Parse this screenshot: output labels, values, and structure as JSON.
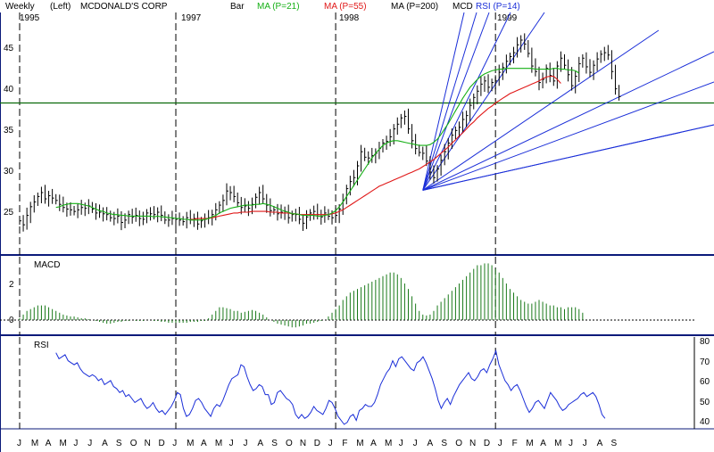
{
  "header": {
    "period": "Weekly",
    "scale_side": "(Left)",
    "company": "MCDONALD'S CORP",
    "bar_label": "Bar",
    "ma21_label": "MA (P=21)",
    "ma55_label": "MA (P=55)",
    "ma200_label": "MA (P=200)",
    "symbol": "MCD",
    "rsi_label": "RSI (P=14)"
  },
  "colors": {
    "ma21": "#16b016",
    "ma55": "#e01818",
    "ma200": "#000000",
    "macd_hist": "#1a7a1a",
    "fan": "#1a2ed8",
    "rsi": "#1a2ed8",
    "support": "#0a6a0a",
    "frame": "#0b1a7a"
  },
  "chart_data": [
    {
      "type": "bar",
      "name": "price",
      "ylim": [
        20.5,
        47.5
      ],
      "yticks": [
        25,
        30,
        35,
        40,
        45
      ],
      "year_labels": [
        {
          "label": "1995",
          "week": 0
        },
        {
          "label": "1997",
          "week": 43
        },
        {
          "label": "1998",
          "week": 87
        },
        {
          "label": "1999",
          "week": 131
        }
      ],
      "support_level": 37.8,
      "close": [
        22.8,
        22.3,
        23.5,
        24.6,
        25.2,
        25.9,
        26.4,
        25.6,
        26.0,
        25.7,
        25.4,
        24.9,
        24.5,
        24.3,
        24.2,
        24.0,
        24.2,
        24.5,
        24.4,
        24.7,
        24.3,
        23.8,
        23.9,
        23.7,
        23.6,
        23.2,
        23.1,
        23.4,
        22.6,
        22.9,
        23.6,
        23.3,
        23.5,
        23.1,
        23.0,
        23.8,
        23.7,
        23.6,
        23.9,
        23.5,
        22.9,
        22.9,
        23.1,
        23.0,
        22.9,
        22.7,
        23.2,
        23.0,
        23.1,
        22.4,
        22.8,
        23.0,
        23.2,
        23.6,
        24.2,
        24.8,
        25.4,
        26.6,
        26.4,
        25.9,
        25.1,
        24.5,
        24.7,
        24.4,
        24.9,
        25.8,
        26.4,
        25.6,
        24.8,
        24.1,
        24.2,
        23.7,
        23.9,
        24.0,
        23.2,
        23.6,
        23.6,
        23.0,
        22.5,
        23.3,
        23.8,
        24.0,
        23.6,
        23.3,
        23.8,
        23.4,
        23.2,
        23.5,
        24.3,
        25.4,
        26.9,
        27.8,
        28.3,
        29.8,
        31.6,
        30.9,
        30.8,
        31.1,
        31.4,
        32.0,
        32.7,
        32.9,
        33.5,
        34.5,
        35.1,
        35.9,
        36.1,
        34.5,
        33.0,
        32.0,
        31.5,
        31.4,
        30.4,
        29.0,
        28.3,
        29.4,
        30.5,
        31.6,
        32.7,
        33.7,
        34.3,
        34.7,
        35.7,
        36.2,
        37.5,
        38.5,
        39.3,
        40.2,
        40.6,
        39.8,
        40.4,
        40.6,
        41.7,
        42.3,
        43.1,
        43.7,
        44.2,
        45.2,
        45.8,
        45.3,
        44.1,
        42.5,
        41.8,
        40.4,
        40.8,
        42.2,
        41.3,
        40.6,
        42.5,
        43.5,
        42.6,
        41.4,
        40.0,
        41.2,
        42.8,
        43.5,
        42.4,
        41.7,
        42.6,
        43.4,
        44.0,
        44.2,
        43.9,
        41.8,
        39.6,
        38.6
      ],
      "ma21": [
        null,
        null,
        null,
        null,
        null,
        null,
        null,
        null,
        null,
        null,
        24.5,
        24.6,
        24.8,
        24.9,
        25.0,
        25.0,
        25.0,
        24.9,
        24.8,
        24.7,
        24.5,
        24.3,
        24.1,
        24.0,
        23.8,
        23.7,
        23.6,
        23.6,
        23.5,
        23.5,
        23.4,
        23.4,
        23.4,
        23.4,
        23.4,
        23.4,
        23.4,
        23.3,
        23.4,
        23.3,
        23.3,
        23.2,
        23.2,
        23.1,
        23.1,
        23.0,
        23.0,
        22.9,
        22.9,
        22.9,
        22.9,
        23.0,
        23.1,
        23.3,
        23.5,
        23.8,
        24.0,
        24.2,
        24.4,
        24.5,
        24.6,
        24.7,
        24.8,
        24.8,
        24.8,
        24.9,
        24.9,
        25.0,
        24.9,
        24.8,
        24.6,
        24.4,
        24.2,
        24.0,
        23.9,
        23.7,
        23.7,
        23.6,
        23.5,
        23.5,
        23.5,
        23.5,
        23.4,
        23.4,
        23.5,
        23.6,
        23.8,
        24.1,
        24.6,
        25.2,
        25.9,
        26.6,
        27.3,
        28.0,
        28.7,
        29.4,
        30.1,
        30.8,
        31.4,
        31.9,
        32.4,
        32.7,
        32.9,
        33.0,
        33.0,
        32.9,
        32.8,
        32.7,
        32.6,
        32.5,
        32.4,
        32.4,
        32.4,
        32.5,
        32.8,
        33.2,
        33.8,
        34.5,
        35.2,
        36.0,
        36.8,
        37.6,
        38.4,
        39.1,
        39.8,
        40.3,
        40.8,
        41.2,
        41.5,
        41.7,
        41.9,
        42.0,
        42.1,
        42.1,
        42.2,
        42.2,
        42.2,
        42.2,
        42.2,
        42.2,
        42.2,
        42.2,
        42.1,
        42.1,
        42.1,
        42.1,
        42.1,
        42.2,
        42.2,
        42.1,
        42.1,
        42.0,
        42.0,
        41.9,
        41.6
      ],
      "ma55": [
        null,
        null,
        null,
        null,
        null,
        null,
        null,
        null,
        null,
        null,
        null,
        null,
        null,
        null,
        null,
        null,
        null,
        null,
        null,
        null,
        null,
        null,
        null,
        null,
        null,
        null,
        null,
        null,
        null,
        null,
        null,
        null,
        null,
        null,
        null,
        null,
        null,
        null,
        null,
        null,
        null,
        null,
        null,
        null,
        null,
        null,
        null,
        23.0,
        23.0,
        23.1,
        23.1,
        23.1,
        23.1,
        23.2,
        23.3,
        23.4,
        23.5,
        23.6,
        23.7,
        23.8,
        23.8,
        23.9,
        23.9,
        23.9,
        24.0,
        24.0,
        24.0,
        24.0,
        24.0,
        23.9,
        23.9,
        23.9,
        23.8,
        23.8,
        23.8,
        23.7,
        23.7,
        23.6,
        23.6,
        23.6,
        23.6,
        23.6,
        23.6,
        23.6,
        23.6,
        23.6,
        23.7,
        23.8,
        24.0,
        24.2,
        24.5,
        24.8,
        25.1,
        25.4,
        25.7,
        26.0,
        26.3,
        26.6,
        26.9,
        27.2,
        27.4,
        27.6,
        27.8,
        28.0,
        28.2,
        28.4,
        28.6,
        28.8,
        29.0,
        29.2,
        29.4,
        29.7,
        30.0,
        30.3,
        30.6,
        31.0,
        31.4,
        31.8,
        32.2,
        32.7,
        33.1,
        33.6,
        34.0,
        34.5,
        35.0,
        35.4,
        35.9,
        36.3,
        36.7,
        37.1,
        37.4,
        37.8,
        38.1,
        38.4,
        38.7,
        39.0,
        39.2,
        39.4,
        39.6,
        39.8,
        40.0,
        40.2,
        40.4,
        40.6,
        40.9,
        41.1,
        41.2,
        41.2,
        40.8,
        40.3
      ]
    },
    {
      "type": "bar",
      "name": "MACD",
      "title": "MACD",
      "ylim": [
        -0.6,
        3.5
      ],
      "yticks": [
        0,
        2
      ],
      "values": [
        0.1,
        0.3,
        0.5,
        0.6,
        0.7,
        0.8,
        0.8,
        0.8,
        0.7,
        0.6,
        0.5,
        0.4,
        0.3,
        0.25,
        0.2,
        0.2,
        0.15,
        0.1,
        0.1,
        0.05,
        0.0,
        -0.05,
        -0.1,
        -0.15,
        -0.2,
        -0.2,
        -0.15,
        -0.1,
        -0.1,
        -0.05,
        -0.05,
        0.0,
        -0.05,
        -0.05,
        -0.05,
        0.0,
        0.0,
        -0.05,
        -0.05,
        -0.1,
        -0.1,
        -0.15,
        -0.15,
        -0.15,
        -0.15,
        -0.15,
        -0.15,
        -0.1,
        -0.1,
        -0.1,
        -0.05,
        -0.05,
        0.1,
        0.3,
        0.5,
        0.7,
        0.7,
        0.65,
        0.6,
        0.5,
        0.5,
        0.4,
        0.45,
        0.5,
        0.55,
        0.5,
        0.4,
        0.3,
        0.15,
        0.0,
        -0.1,
        -0.2,
        -0.25,
        -0.3,
        -0.35,
        -0.4,
        -0.4,
        -0.35,
        -0.3,
        -0.2,
        -0.2,
        -0.15,
        -0.1,
        -0.05,
        0.0,
        0.2,
        0.4,
        0.6,
        0.8,
        1.1,
        1.3,
        1.5,
        1.6,
        1.7,
        1.8,
        1.9,
        2.0,
        2.1,
        2.2,
        2.3,
        2.4,
        2.5,
        2.6,
        2.6,
        2.5,
        2.3,
        2.0,
        1.7,
        1.3,
        0.9,
        0.5,
        0.3,
        0.25,
        0.3,
        0.5,
        0.8,
        1.0,
        1.2,
        1.4,
        1.6,
        1.8,
        2.0,
        2.2,
        2.4,
        2.6,
        2.8,
        3.0,
        3.0,
        3.1,
        3.1,
        3.0,
        2.8,
        2.6,
        2.3,
        2.0,
        1.7,
        1.5,
        1.3,
        1.1,
        1.0,
        0.9,
        0.9,
        1.0,
        1.1,
        1.0,
        0.9,
        0.8,
        0.8,
        0.7,
        0.7,
        0.6,
        0.7,
        0.7,
        0.7,
        0.6,
        0.4
      ]
    },
    {
      "type": "line",
      "name": "RSI",
      "title": "RSI",
      "ylim": [
        36,
        82
      ],
      "yticks": [
        40,
        50,
        60,
        70,
        80
      ],
      "start_week": 10,
      "values": [
        76,
        73,
        74,
        75,
        72,
        71,
        70,
        71,
        68,
        66,
        65,
        64,
        65,
        64,
        62,
        63,
        60,
        61,
        62,
        59,
        58,
        56,
        57,
        54,
        55,
        53,
        51,
        52,
        53,
        50,
        48,
        49,
        51,
        48,
        46,
        47,
        45,
        47,
        49,
        52,
        56,
        55,
        48,
        44,
        45,
        48,
        52,
        53,
        51,
        48,
        46,
        44,
        48,
        50,
        49,
        52,
        56,
        60,
        63,
        64,
        65,
        70,
        69,
        64,
        60,
        57,
        58,
        60,
        59,
        55,
        55,
        50,
        51,
        56,
        57,
        55,
        53,
        52,
        50,
        45,
        43,
        45,
        43,
        44,
        46,
        49,
        47,
        46,
        45,
        48,
        52,
        51,
        48,
        44,
        42,
        40,
        41,
        44,
        45,
        42,
        47,
        48,
        50,
        49,
        49,
        51,
        55,
        60,
        63,
        66,
        68,
        72,
        69,
        73,
        74,
        72,
        70,
        68,
        67,
        71,
        72,
        74,
        71,
        67,
        63,
        58,
        52,
        48,
        51,
        53,
        50,
        54,
        57,
        60,
        62,
        64,
        66,
        63,
        62,
        64,
        67,
        68,
        66,
        70,
        73,
        77,
        70,
        66,
        62,
        60,
        57,
        59,
        60,
        57,
        53,
        49,
        46,
        48,
        51,
        52,
        50,
        48,
        52,
        56,
        54,
        52,
        49,
        47,
        48,
        50,
        51,
        52,
        53,
        55,
        56,
        54,
        55,
        56,
        54,
        50,
        45,
        43
      ]
    },
    {
      "type": "axis",
      "name": "months",
      "months": [
        "J",
        "M",
        "A",
        "M",
        "J",
        "J",
        "A",
        "S",
        "O",
        "N",
        "D",
        "J",
        "M",
        "A",
        "M",
        "J",
        "J",
        "A",
        "S",
        "O",
        "N",
        "D",
        "J",
        "F",
        "M",
        "A",
        "M",
        "J",
        "J",
        "A",
        "S",
        "O",
        "N",
        "D",
        "J",
        "F",
        "M",
        "A",
        "M",
        "J",
        "J",
        "A",
        "S"
      ]
    }
  ]
}
